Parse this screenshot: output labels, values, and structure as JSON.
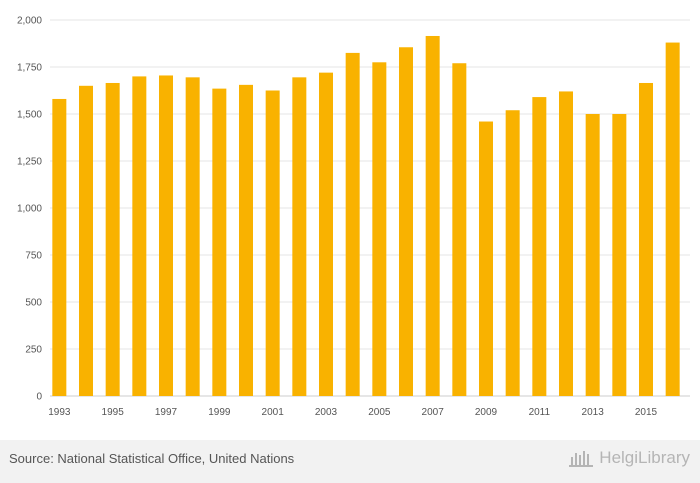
{
  "chart_data": {
    "type": "bar",
    "title": "",
    "xlabel": "",
    "ylabel": "",
    "categories": [
      "1993",
      "1994",
      "1995",
      "1996",
      "1997",
      "1998",
      "1999",
      "2000",
      "2001",
      "2002",
      "2003",
      "2004",
      "2005",
      "2006",
      "2007",
      "2008",
      "2009",
      "2010",
      "2011",
      "2012",
      "2013",
      "2014",
      "2015",
      "2016"
    ],
    "x_tick_labels": [
      "1993",
      "1995",
      "1997",
      "1999",
      "2001",
      "2003",
      "2005",
      "2007",
      "2009",
      "2011",
      "2013",
      "2015"
    ],
    "values": [
      1580,
      1650,
      1665,
      1700,
      1705,
      1695,
      1635,
      1655,
      1625,
      1695,
      1720,
      1825,
      1775,
      1855,
      1915,
      1770,
      1460,
      1520,
      1590,
      1620,
      1500,
      1500,
      1665,
      1880
    ],
    "ylim": [
      0,
      2000
    ],
    "y_ticks": [
      0,
      250,
      500,
      750,
      1000,
      1250,
      1500,
      1750,
      2000
    ],
    "y_tick_labels": [
      "0",
      "250",
      "500",
      "750",
      "1,000",
      "1,250",
      "1,500",
      "1,750",
      "2,000"
    ],
    "grid": true,
    "bar_color": "#f9b200"
  },
  "footer": {
    "source": "Source: National Statistical Office, United Nations",
    "brand": "HelgiLibrary",
    "brand_icon": "helgilibrary-logo-icon"
  }
}
